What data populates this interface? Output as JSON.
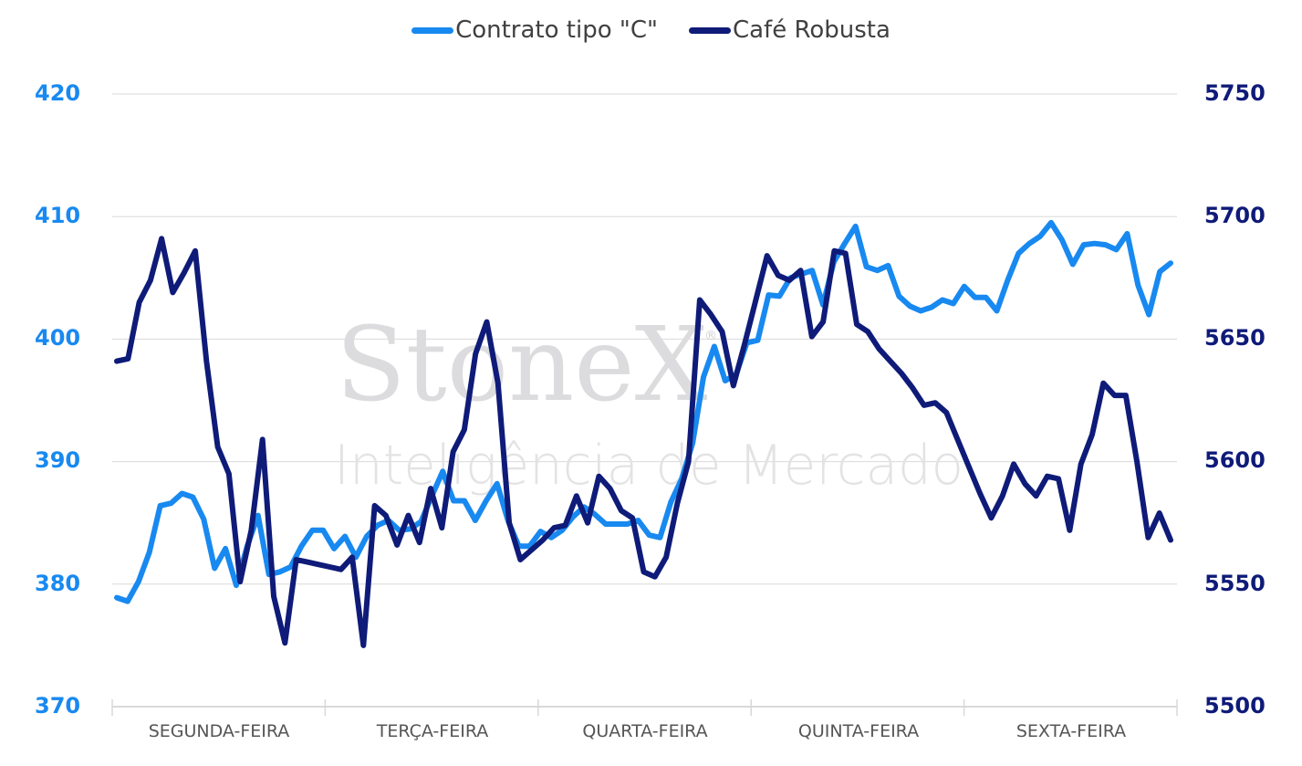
{
  "legend": {
    "items": [
      {
        "label": "Contrato tipo \"C\"",
        "color": "#1889f0"
      },
      {
        "label": "Café Robusta",
        "color": "#0f1b78"
      }
    ]
  },
  "watermark": {
    "line1": "StoneX",
    "registered": "®",
    "line2": "Inteligência de Mercado"
  },
  "axes": {
    "left_ticks": [
      "420",
      "410",
      "400",
      "390",
      "380",
      "370"
    ],
    "right_ticks": [
      "5750",
      "5700",
      "5650",
      "5600",
      "5550",
      "5500"
    ],
    "x_categories": [
      "SEGUNDA-FEIRA",
      "TERÇA-FEIRA",
      "QUARTA-FEIRA",
      "QUINTA-FEIRA",
      "SEXTA-FEIRA"
    ]
  },
  "chart_data": {
    "type": "line",
    "title": "",
    "xlabel": "",
    "ylabel_left": "Contrato tipo \"C\"",
    "ylabel_right": "Café Robusta",
    "categories": [
      "SEGUNDA-FEIRA",
      "TERÇA-FEIRA",
      "QUARTA-FEIRA",
      "QUINTA-FEIRA",
      "SEXTA-FEIRA"
    ],
    "ylim_left": [
      370,
      420
    ],
    "ylim_right": [
      5500,
      5750
    ],
    "grid": true,
    "legend_position": "top",
    "series": [
      {
        "name": "Contrato tipo \"C\"",
        "axis": "left",
        "color": "#1889f0",
        "values": [
          378.9,
          378.6,
          380.2,
          382.6,
          386.4,
          386.6,
          387.4,
          387.1,
          385.3,
          381.3,
          382.9,
          379.9,
          383.1,
          385.6,
          380.8,
          381.0,
          381.4,
          383.1,
          384.4,
          384.4,
          382.9,
          383.9,
          382.2,
          383.9,
          384.8,
          385.2,
          384.4,
          384.5,
          385.1,
          387.2,
          389.2,
          386.8,
          386.8,
          385.2,
          386.8,
          388.2,
          385.2,
          383.1,
          383.1,
          384.3,
          383.8,
          384.4,
          385.5,
          386.3,
          385.7,
          384.9,
          384.9,
          384.9,
          385.2,
          384.0,
          383.8,
          386.7,
          388.6,
          391.5,
          396.9,
          399.4,
          396.6,
          397.1,
          399.7,
          399.9,
          403.6,
          403.5,
          405.0,
          405.3,
          405.6,
          402.8,
          406.3,
          407.8,
          409.2,
          405.9,
          405.6,
          406.0,
          403.5,
          402.7,
          402.3,
          402.6,
          403.2,
          402.9,
          404.3,
          403.4,
          403.4,
          402.3,
          404.8,
          407.0,
          407.8,
          408.4,
          409.5,
          408.1,
          406.1,
          407.7,
          407.8,
          407.7,
          407.3,
          408.6,
          404.4,
          402.0,
          405.5,
          406.2
        ]
      },
      {
        "name": "Café Robusta",
        "axis": "right",
        "color": "#0f1b78",
        "values": [
          5641,
          5642,
          5665,
          5674,
          5691,
          5669,
          5677,
          5686,
          5641,
          5606,
          5595,
          5551,
          5572,
          5609,
          5545,
          5526,
          5560,
          5559,
          5558,
          5557,
          5556,
          5561,
          5525,
          5582,
          5578,
          5566,
          5578,
          5567,
          5589,
          5573,
          5604,
          5613,
          5644,
          5657,
          5632,
          5575,
          5560,
          5564,
          5568,
          5573,
          5574,
          5586,
          5575,
          5594,
          5589,
          5580,
          5577,
          5555,
          5553,
          5561,
          5583,
          5600,
          5666,
          5660,
          5653,
          5631,
          5648,
          5666,
          5684,
          5676,
          5674,
          5678,
          5651,
          5657,
          5686,
          5685,
          5656,
          5653,
          5646,
          5641,
          5636,
          5630,
          5623,
          5624,
          5620,
          5609,
          5598,
          5587,
          5577,
          5586,
          5599,
          5591,
          5586,
          5594,
          5593,
          5572,
          5599,
          5611,
          5632,
          5627,
          5627,
          5600,
          5569,
          5579,
          5568
        ]
      }
    ]
  }
}
